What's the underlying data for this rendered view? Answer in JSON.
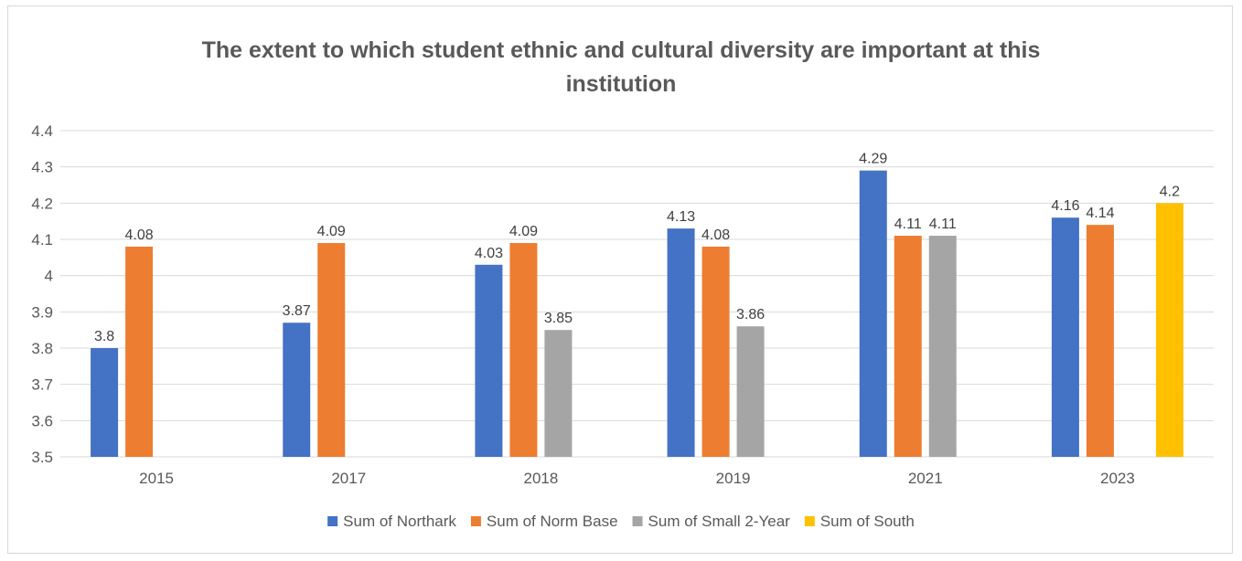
{
  "chart_data": {
    "type": "bar",
    "title_lines": [
      "The extent to which student ethnic and cultural diversity are important at this",
      "institution"
    ],
    "categories": [
      "2015",
      "2017",
      "2018",
      "2019",
      "2021",
      "2023"
    ],
    "ylim": [
      3.5,
      4.4
    ],
    "yticks": [
      "3.5",
      "3.6",
      "3.7",
      "3.8",
      "3.9",
      "4",
      "4.1",
      "4.2",
      "4.3",
      "4.4"
    ],
    "ytick_values": [
      3.5,
      3.6,
      3.7,
      3.8,
      3.9,
      4.0,
      4.1,
      4.2,
      4.3,
      4.4
    ],
    "grid": true,
    "legend_position": "bottom",
    "series": [
      {
        "name": "Sum of Northark",
        "color": "#4472c4",
        "values": [
          3.8,
          3.87,
          4.03,
          4.13,
          4.29,
          4.16
        ],
        "labels": [
          "3.8",
          "3.87",
          "4.03",
          "4.13",
          "4.29",
          "4.16"
        ]
      },
      {
        "name": "Sum of Norm Base",
        "color": "#ed7d31",
        "values": [
          4.08,
          4.09,
          4.09,
          4.08,
          4.11,
          4.14
        ],
        "labels": [
          "4.08",
          "4.09",
          "4.09",
          "4.08",
          "4.11",
          "4.14"
        ]
      },
      {
        "name": "Sum of Small 2-Year",
        "color": "#a5a5a5",
        "values": [
          null,
          null,
          3.85,
          3.86,
          4.11,
          null
        ],
        "labels": [
          null,
          null,
          "3.85",
          "3.86",
          "4.11",
          null
        ]
      },
      {
        "name": "Sum of South",
        "color": "#ffc000",
        "values": [
          null,
          null,
          null,
          null,
          null,
          4.2
        ],
        "labels": [
          null,
          null,
          null,
          null,
          null,
          "4.2"
        ]
      }
    ]
  }
}
